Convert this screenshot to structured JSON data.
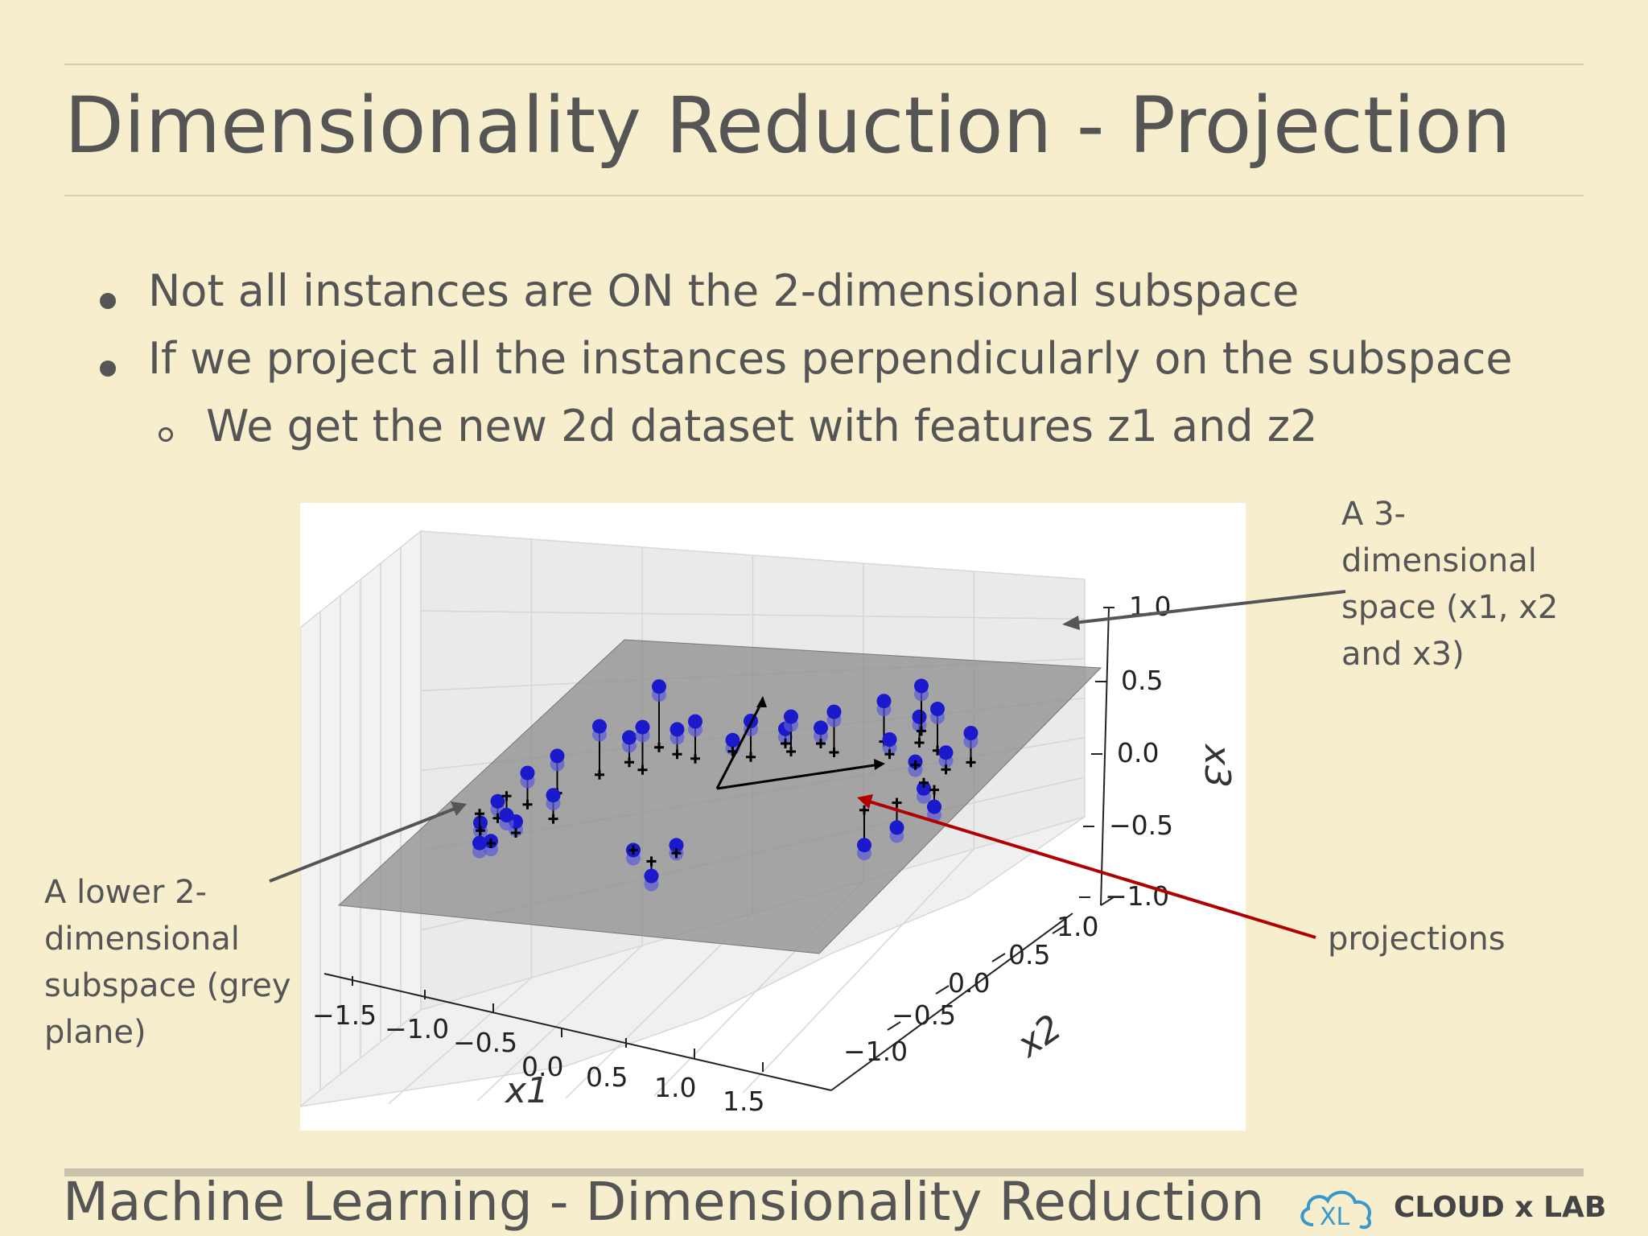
{
  "slide": {
    "title": "Dimensionality Reduction - Projection",
    "bullets": [
      "Not all instances are ON the 2-dimensional subspace",
      "If we project all the instances perpendicularly on the subspace"
    ],
    "sub_bullets": [
      "We get  the new 2d dataset with features z1 and z2"
    ],
    "annotations": {
      "space_3d": [
        "A 3-",
        "dimensional",
        "space (x1, x2",
        "and x3)"
      ],
      "subspace_2d": [
        "A lower 2-",
        "dimensional",
        "subspace (grey",
        "plane)"
      ],
      "projections": "projections"
    },
    "footer": "Machine Learning - Dimensionality Reduction",
    "logo_text": "CLOUD x LAB",
    "logo_mark": "XL",
    "colors": {
      "background": "#f6eecd",
      "text": "#555555",
      "points": "#1a1acc",
      "projection_arrow": "#b00000",
      "plane": "#8c8c8c"
    }
  },
  "chart_data": {
    "type": "scatter",
    "projection": "3d",
    "xlabel": "x1",
    "ylabel": "x2",
    "zlabel": "x3",
    "x_ticks": [
      "−1.5",
      "−1.0",
      "−0.5",
      "0.0",
      "0.5",
      "1.0",
      "1.5"
    ],
    "y_ticks": [
      "−1.0",
      "−0.5",
      "0.0",
      "0.5",
      "1.0"
    ],
    "z_ticks": [
      "1.0",
      "0.5",
      "0.0",
      "−0.5",
      "−1.0"
    ],
    "xlim": [
      -1.8,
      1.8
    ],
    "ylim": [
      -1.3,
      1.3
    ],
    "zlim": [
      -1.0,
      1.0
    ],
    "grid": true,
    "plane": "grey 2D subspace",
    "points": [
      [
        -1.2,
        -0.55,
        -0.4,
        -0.47
      ],
      [
        -1.15,
        -0.45,
        -0.25,
        -0.4
      ],
      [
        -1.1,
        -0.6,
        -0.5,
        -0.52
      ],
      [
        -1.05,
        -0.3,
        -0.05,
        -0.33
      ],
      [
        -1.0,
        -0.5,
        -0.35,
        -0.45
      ],
      [
        -0.95,
        -0.15,
        0.05,
        -0.28
      ],
      [
        -0.85,
        -0.35,
        -0.15,
        -0.36
      ],
      [
        -0.8,
        0.05,
        0.25,
        -0.18
      ],
      [
        -1.25,
        -0.2,
        -0.55,
        -0.38
      ],
      [
        -0.7,
        0.2,
        0.1,
        -0.12
      ],
      [
        -0.55,
        0.1,
        0.3,
        -0.08
      ],
      [
        -0.45,
        0.3,
        0.2,
        -0.02
      ],
      [
        -0.3,
        0.25,
        0.35,
        0.02
      ],
      [
        -0.15,
        0.4,
        0.15,
        0.05
      ],
      [
        0.0,
        0.35,
        0.4,
        0.08
      ],
      [
        0.1,
        0.55,
        0.25,
        0.12
      ],
      [
        0.2,
        0.45,
        0.45,
        0.14
      ],
      [
        0.3,
        0.6,
        0.3,
        0.16
      ],
      [
        0.45,
        0.5,
        0.55,
        0.19
      ],
      [
        -0.2,
        -0.55,
        -0.3,
        -0.3
      ],
      [
        -0.05,
        -0.6,
        -0.45,
        -0.32
      ],
      [
        0.05,
        -0.5,
        -0.2,
        -0.27
      ],
      [
        0.65,
        0.7,
        0.6,
        0.24
      ],
      [
        0.75,
        0.6,
        0.35,
        0.22
      ],
      [
        0.85,
        0.75,
        0.5,
        0.27
      ],
      [
        0.95,
        0.55,
        0.25,
        0.22
      ],
      [
        1.0,
        0.7,
        0.65,
        0.28
      ],
      [
        1.1,
        0.4,
        0.15,
        0.2
      ],
      [
        1.15,
        0.55,
        0.4,
        0.25
      ],
      [
        1.05,
        0.2,
        -0.1,
        0.12
      ],
      [
        1.2,
        0.35,
        0.05,
        0.2
      ],
      [
        0.9,
        0.1,
        -0.25,
        0.06
      ],
      [
        1.25,
        0.65,
        0.55,
        0.29
      ],
      [
        0.8,
        0.85,
        0.7,
        0.3
      ],
      [
        -1.3,
        -0.4,
        -0.7,
        -0.44
      ],
      [
        -0.6,
        0.35,
        0.5,
        -0.04
      ]
    ],
    "basis_vectors_origin": [
      0.0,
      0.0,
      0.0
    ]
  }
}
